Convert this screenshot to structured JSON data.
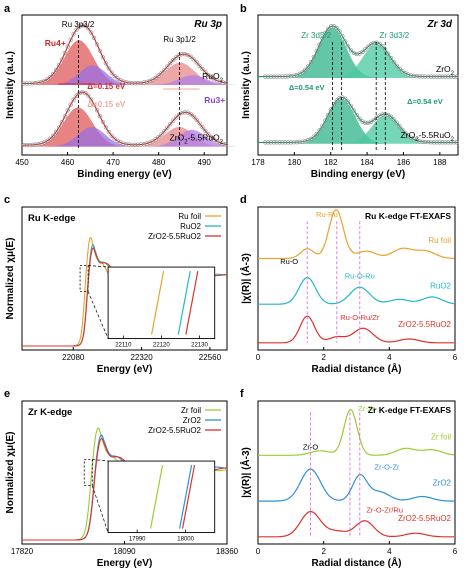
{
  "chart_data": [
    {
      "panel_letter": "a",
      "type": "line",
      "title": "Ru 3p",
      "xlabel": "Binding energy (eV)",
      "ylabel": "Intensity (a.u.)",
      "xlim": [
        450,
        495
      ],
      "xticks": [
        450,
        460,
        470,
        480,
        490
      ],
      "ylim": [
        0,
        1
      ],
      "peak_labels": {
        "p32": "Ru 3p3/2",
        "p12": "Ru 3p1/2"
      },
      "annotations": {
        "ru4": "Ru4+",
        "ru3": "Ru3+",
        "delta_top": "Δ=0.15 eV",
        "delta_bottom": "Δ=0.15 eV"
      },
      "series": [
        {
          "name": "RuO2",
          "label_main": "RuO",
          "label_sub": "2",
          "label_rest": "",
          "offset": 0.5,
          "peaks": [
            {
              "center": 462.5,
              "height": 0.32,
              "width": 3.2
            },
            {
              "center": 465.5,
              "height": 0.14,
              "width": 3.0
            },
            {
              "center": 484.7,
              "height": 0.16,
              "width": 3.2
            },
            {
              "center": 487.5,
              "height": 0.07,
              "width": 3.0
            }
          ]
        },
        {
          "name": "ZrO2-5.5RuO2",
          "label_main": "ZrO",
          "label_sub": "2",
          "label_rest": "-5.5RuO",
          "offset": 0.06,
          "peaks": [
            {
              "center": 462.3,
              "height": 0.28,
              "width": 3.2
            },
            {
              "center": 465.3,
              "height": 0.14,
              "width": 3.0
            },
            {
              "center": 484.5,
              "height": 0.14,
              "width": 3.2
            },
            {
              "center": 487.3,
              "height": 0.12,
              "width": 3.0
            }
          ]
        }
      ]
    },
    {
      "panel_letter": "b",
      "type": "line",
      "title": "Zr 3d",
      "xlabel": "Binding energy (eV)",
      "ylabel": "Intensity (a.u.)",
      "xlim": [
        178,
        189
      ],
      "xticks": [
        178,
        180,
        182,
        184,
        186,
        188
      ],
      "ylim": [
        0,
        1
      ],
      "peak_labels": {
        "d52": "Zr 3d5/2",
        "d32": "Zr 3d3/2"
      },
      "annotations": {
        "delta_left": "Δ=0.54 eV",
        "delta_right": "Δ=0.54 eV"
      },
      "series": [
        {
          "name": "ZrO2",
          "label_main": "ZrO",
          "label_sub": "2",
          "label_rest": "",
          "offset": 0.55,
          "peaks": [
            {
              "center": 182.1,
              "height": 0.36,
              "width": 0.75
            },
            {
              "center": 184.5,
              "height": 0.24,
              "width": 0.75
            }
          ]
        },
        {
          "name": "ZrO2-5.5RuO2",
          "label_main": "ZrO",
          "label_sub": "2",
          "label_rest": "-5.5RuO",
          "offset": 0.08,
          "peaks": [
            {
              "center": 182.6,
              "height": 0.32,
              "width": 0.75
            },
            {
              "center": 185.0,
              "height": 0.2,
              "width": 0.75
            }
          ]
        }
      ]
    },
    {
      "panel_letter": "c",
      "type": "line",
      "title": "Ru K-edge",
      "xlabel": "Energy (eV)",
      "ylabel": "Normalized χμ(E)",
      "xlim": [
        21900,
        22620
      ],
      "xticks": [
        22080,
        22320,
        22560
      ],
      "edge_energy": 22118,
      "legend": [
        {
          "name": "Ru foil",
          "color": "#e8a32a"
        },
        {
          "name": "RuO2",
          "color": "#22b8c8"
        },
        {
          "name": "ZrO2-5.5RuO2",
          "color": "#e0302a"
        }
      ],
      "inset": {
        "xticks": [
          22110,
          22120,
          22130
        ]
      }
    },
    {
      "panel_letter": "d",
      "type": "line",
      "title": "Ru K-edge FT-EXAFS",
      "xlabel": "Radial distance (Å)",
      "ylabel": "|χ(R)| (Å-3)",
      "xlim": [
        0,
        6
      ],
      "xticks": [
        0,
        2,
        4,
        6
      ],
      "bond_labels": {
        "ru_ru": "Ru-Ru",
        "ru_o": "Ru-O",
        "ru_o_ru": "Ru-O-Ru",
        "ru_o_ru_zr": "Ru-O-Ru/Zr"
      },
      "bond_positions": {
        "ru_ru": 2.4,
        "ru_o": 1.5,
        "ru_o_ru": 3.1
      },
      "series": [
        {
          "name": "Ru foil",
          "color": "#e8a32a",
          "peaks": [
            {
              "center": 2.38,
              "height": 1.0,
              "width": 0.22
            },
            {
              "center": 1.5,
              "height": 0.2,
              "width": 0.2
            },
            {
              "center": 3.3,
              "height": 0.15,
              "width": 0.3
            },
            {
              "center": 4.4,
              "height": 0.2,
              "width": 0.3
            },
            {
              "center": 5.1,
              "height": 0.15,
              "width": 0.3
            }
          ]
        },
        {
          "name": "RuO2",
          "color": "#22b8c8",
          "peaks": [
            {
              "center": 1.5,
              "height": 0.55,
              "width": 0.25
            },
            {
              "center": 3.1,
              "height": 0.35,
              "width": 0.3
            },
            {
              "center": 4.3,
              "height": 0.1,
              "width": 0.3
            },
            {
              "center": 5.3,
              "height": 0.15,
              "width": 0.3
            }
          ]
        },
        {
          "name": "ZrO2-5.5RuO2",
          "color": "#e0302a",
          "peaks": [
            {
              "center": 1.5,
              "height": 0.55,
              "width": 0.22
            },
            {
              "center": 3.2,
              "height": 0.3,
              "width": 0.3
            },
            {
              "center": 2.4,
              "height": 0.12,
              "width": 0.25
            },
            {
              "center": 4.6,
              "height": 0.08,
              "width": 0.3
            }
          ]
        }
      ]
    },
    {
      "panel_letter": "e",
      "type": "line",
      "title": "Zr K-edge",
      "xlabel": "Energy (eV)",
      "ylabel": "Normalized χμ(E)",
      "xlim": [
        17820,
        18360
      ],
      "xticks": [
        17820,
        18090,
        18360
      ],
      "edge_energy": 17998,
      "legend": [
        {
          "name": "Zr foil",
          "color": "#9acd32"
        },
        {
          "name": "ZrO2",
          "color": "#2f8fdc"
        },
        {
          "name": "ZrO2-5.5RuO2",
          "color": "#e0302a"
        }
      ],
      "inset": {
        "xticks": [
          17990,
          18000
        ]
      }
    },
    {
      "panel_letter": "f",
      "type": "line",
      "title": "Zr K-edge FT-EXAFS",
      "xlabel": "Radial distance (Å)",
      "ylabel": "|χ(R)| (Å-3)",
      "xlim": [
        0,
        6
      ],
      "xticks": [
        0,
        2,
        4,
        6
      ],
      "bond_labels": {
        "zr_zr": "Zr-Zr",
        "zr_o": "Zr-O",
        "zr_o_zr": "Zr-O-Zr",
        "zr_o_zr_ru": "Zr-O-Zr/Ru"
      },
      "bond_positions": {
        "zr_zr": 2.8,
        "zr_o": 1.6,
        "zr_o_zr": 3.1
      },
      "series": [
        {
          "name": "Zr foil",
          "color": "#9acd32",
          "peaks": [
            {
              "center": 2.82,
              "height": 1.0,
              "width": 0.2
            },
            {
              "center": 1.9,
              "height": 0.1,
              "width": 0.3
            },
            {
              "center": 4.5,
              "height": 0.15,
              "width": 0.3
            },
            {
              "center": 5.3,
              "height": 0.12,
              "width": 0.3
            }
          ]
        },
        {
          "name": "ZrO2",
          "color": "#2f8fdc",
          "peaks": [
            {
              "center": 1.6,
              "height": 0.7,
              "width": 0.3
            },
            {
              "center": 3.1,
              "height": 0.55,
              "width": 0.22
            },
            {
              "center": 3.7,
              "height": 0.2,
              "width": 0.3
            },
            {
              "center": 5.0,
              "height": 0.1,
              "width": 0.3
            }
          ]
        },
        {
          "name": "ZrO2-5.5RuO2",
          "color": "#e0302a",
          "peaks": [
            {
              "center": 1.6,
              "height": 0.55,
              "width": 0.3
            },
            {
              "center": 3.25,
              "height": 0.35,
              "width": 0.28
            },
            {
              "center": 2.4,
              "height": 0.12,
              "width": 0.3
            },
            {
              "center": 4.8,
              "height": 0.08,
              "width": 0.3
            }
          ]
        }
      ]
    }
  ]
}
